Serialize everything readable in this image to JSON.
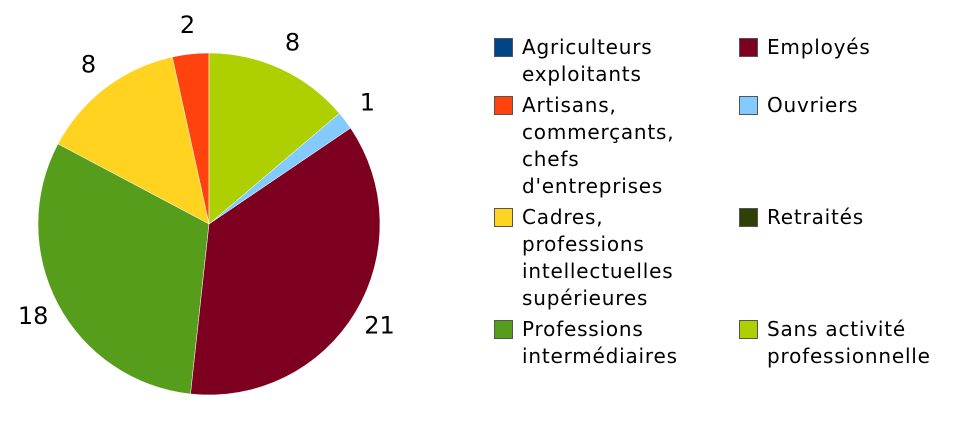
{
  "chart_data": {
    "type": "pie",
    "categories": [
      "Agriculteurs exploitants",
      "Artisans, commerçants, chefs d'entreprises",
      "Cadres, professions intellectuelles supérieures",
      "Professions intermédiaires",
      "Employés",
      "Ouvriers",
      "Retraités",
      "Sans activité professionnelle"
    ],
    "values": [
      0,
      2,
      8,
      18,
      21,
      1,
      0,
      8
    ],
    "colors": [
      "#004586",
      "#ff420e",
      "#ffd320",
      "#579d1c",
      "#7e0021",
      "#83caff",
      "#314004",
      "#aecf00"
    ],
    "direction": "counterclockwise",
    "legend": "right"
  }
}
